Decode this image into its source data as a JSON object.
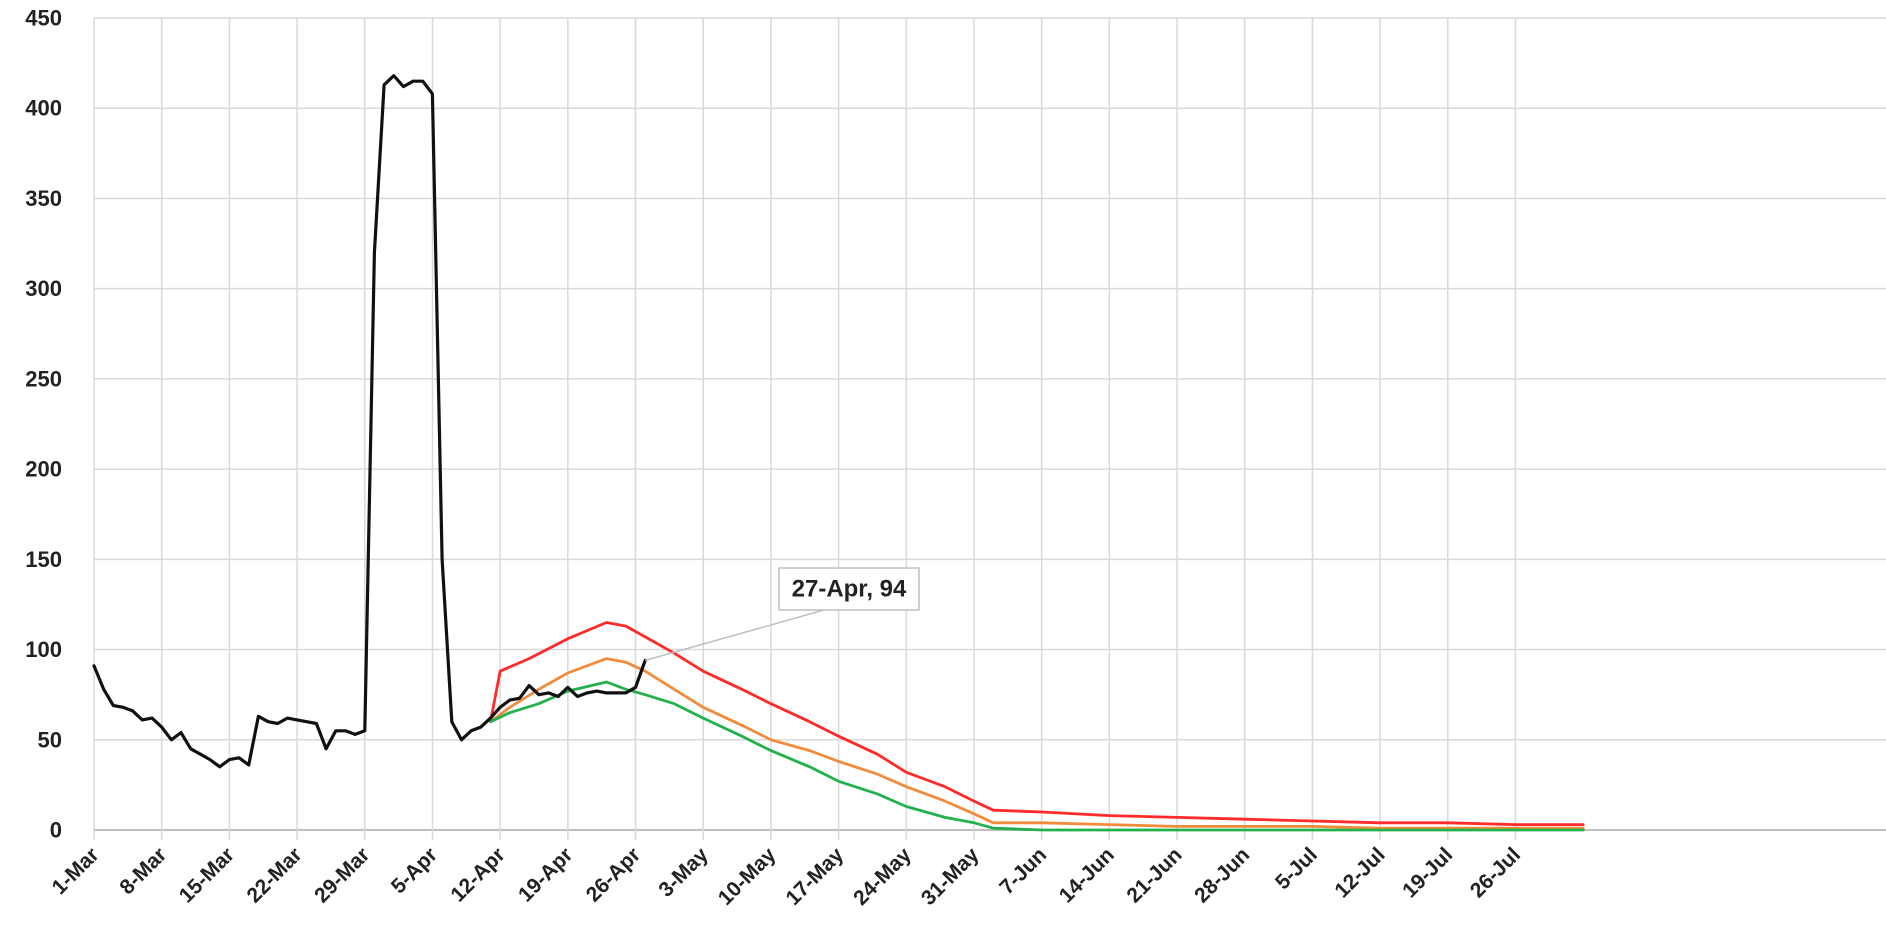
{
  "chart_data": {
    "type": "line",
    "title": "",
    "xlabel": "",
    "ylabel": "",
    "ylim": [
      0,
      450
    ],
    "yticks": [
      0,
      50,
      100,
      150,
      200,
      250,
      300,
      350,
      400,
      450
    ],
    "xlim_days": [
      0,
      155
    ],
    "x_tick_labels": [
      "1-Mar",
      "8-Mar",
      "15-Mar",
      "22-Mar",
      "29-Mar",
      "5-Apr",
      "12-Apr",
      "19-Apr",
      "26-Apr",
      "3-May",
      "10-May",
      "17-May",
      "24-May",
      "31-May",
      "7-Jun",
      "14-Jun",
      "21-Jun",
      "28-Jun",
      "5-Jul",
      "12-Jul",
      "19-Jul",
      "26-Jul"
    ],
    "grid": true,
    "legend": "none",
    "annotation": {
      "text": "27-Apr, 94",
      "x": "27-Apr",
      "y": 94
    },
    "series": [
      {
        "color": "#ff2a2a",
        "points": [
          [
            "11-Apr",
            60
          ],
          [
            "12-Apr",
            88
          ],
          [
            "15-Apr",
            95
          ],
          [
            "19-Apr",
            106
          ],
          [
            "23-Apr",
            115
          ],
          [
            "25-Apr",
            113
          ],
          [
            "27-Apr",
            107
          ],
          [
            "30-Apr",
            98
          ],
          [
            "3-May",
            88
          ],
          [
            "7-May",
            78
          ],
          [
            "10-May",
            70
          ],
          [
            "14-May",
            60
          ],
          [
            "17-May",
            52
          ],
          [
            "21-May",
            42
          ],
          [
            "24-May",
            32
          ],
          [
            "28-May",
            24
          ],
          [
            "31-May",
            16
          ],
          [
            "2-Jun",
            11
          ],
          [
            "7-Jun",
            10
          ],
          [
            "14-Jun",
            8
          ],
          [
            "21-Jun",
            7
          ],
          [
            "28-Jun",
            6
          ],
          [
            "5-Jul",
            5
          ],
          [
            "12-Jul",
            4
          ],
          [
            "19-Jul",
            4
          ],
          [
            "26-Jul",
            3
          ],
          [
            "2-Aug",
            3
          ]
        ]
      },
      {
        "color": "#f28c3c",
        "points": [
          [
            "11-Apr",
            60
          ],
          [
            "13-Apr",
            68
          ],
          [
            "16-Apr",
            78
          ],
          [
            "19-Apr",
            87
          ],
          [
            "23-Apr",
            95
          ],
          [
            "25-Apr",
            93
          ],
          [
            "27-Apr",
            88
          ],
          [
            "30-Apr",
            78
          ],
          [
            "3-May",
            68
          ],
          [
            "7-May",
            58
          ],
          [
            "10-May",
            50
          ],
          [
            "14-May",
            44
          ],
          [
            "17-May",
            38
          ],
          [
            "21-May",
            31
          ],
          [
            "24-May",
            24
          ],
          [
            "28-May",
            16
          ],
          [
            "31-May",
            9
          ],
          [
            "2-Jun",
            4
          ],
          [
            "7-Jun",
            4
          ],
          [
            "14-Jun",
            3
          ],
          [
            "21-Jun",
            2
          ],
          [
            "28-Jun",
            2
          ],
          [
            "5-Jul",
            2
          ],
          [
            "12-Jul",
            1
          ],
          [
            "19-Jul",
            1
          ],
          [
            "2-Aug",
            1
          ]
        ]
      },
      {
        "color": "#22b14c",
        "points": [
          [
            "11-Apr",
            60
          ],
          [
            "13-Apr",
            65
          ],
          [
            "16-Apr",
            70
          ],
          [
            "19-Apr",
            77
          ],
          [
            "23-Apr",
            82
          ],
          [
            "25-Apr",
            78
          ],
          [
            "27-Apr",
            75
          ],
          [
            "30-Apr",
            70
          ],
          [
            "3-May",
            62
          ],
          [
            "7-May",
            52
          ],
          [
            "10-May",
            44
          ],
          [
            "14-May",
            35
          ],
          [
            "17-May",
            27
          ],
          [
            "21-May",
            20
          ],
          [
            "24-May",
            13
          ],
          [
            "28-May",
            7
          ],
          [
            "31-May",
            4
          ],
          [
            "2-Jun",
            1
          ],
          [
            "7-Jun",
            0
          ],
          [
            "14-Jun",
            0
          ],
          [
            "21-Jun",
            0
          ],
          [
            "28-Jun",
            0
          ],
          [
            "5-Jul",
            0
          ],
          [
            "19-Jul",
            0
          ],
          [
            "2-Aug",
            0
          ]
        ]
      },
      {
        "color": "#111111",
        "points": [
          [
            "1-Mar",
            91
          ],
          [
            "2-Mar",
            78
          ],
          [
            "3-Mar",
            69
          ],
          [
            "4-Mar",
            68
          ],
          [
            "5-Mar",
            66
          ],
          [
            "6-Mar",
            61
          ],
          [
            "7-Mar",
            62
          ],
          [
            "8-Mar",
            57
          ],
          [
            "9-Mar",
            50
          ],
          [
            "10-Mar",
            54
          ],
          [
            "11-Mar",
            45
          ],
          [
            "12-Mar",
            42
          ],
          [
            "13-Mar",
            39
          ],
          [
            "14-Mar",
            35
          ],
          [
            "15-Mar",
            39
          ],
          [
            "16-Mar",
            40
          ],
          [
            "17-Mar",
            36
          ],
          [
            "18-Mar",
            63
          ],
          [
            "19-Mar",
            60
          ],
          [
            "20-Mar",
            59
          ],
          [
            "21-Mar",
            62
          ],
          [
            "22-Mar",
            61
          ],
          [
            "23-Mar",
            60
          ],
          [
            "24-Mar",
            59
          ],
          [
            "25-Mar",
            45
          ],
          [
            "26-Mar",
            55
          ],
          [
            "27-Mar",
            55
          ],
          [
            "28-Mar",
            53
          ],
          [
            "29-Mar",
            55
          ],
          [
            "30-Mar",
            320
          ],
          [
            "31-Mar",
            413
          ],
          [
            "1-Apr",
            418
          ],
          [
            "2-Apr",
            412
          ],
          [
            "3-Apr",
            415
          ],
          [
            "4-Apr",
            415
          ],
          [
            "5-Apr",
            408
          ],
          [
            "6-Apr",
            150
          ],
          [
            "7-Apr",
            60
          ],
          [
            "8-Apr",
            50
          ],
          [
            "9-Apr",
            55
          ],
          [
            "10-Apr",
            57
          ],
          [
            "11-Apr",
            62
          ],
          [
            "12-Apr",
            68
          ],
          [
            "13-Apr",
            72
          ],
          [
            "14-Apr",
            73
          ],
          [
            "15-Apr",
            80
          ],
          [
            "16-Apr",
            75
          ],
          [
            "17-Apr",
            76
          ],
          [
            "18-Apr",
            74
          ],
          [
            "19-Apr",
            79
          ],
          [
            "20-Apr",
            74
          ],
          [
            "21-Apr",
            76
          ],
          [
            "22-Apr",
            77
          ],
          [
            "23-Apr",
            76
          ],
          [
            "24-Apr",
            76
          ],
          [
            "25-Apr",
            76
          ],
          [
            "26-Apr",
            79
          ],
          [
            "27-Apr",
            94
          ]
        ]
      }
    ]
  }
}
